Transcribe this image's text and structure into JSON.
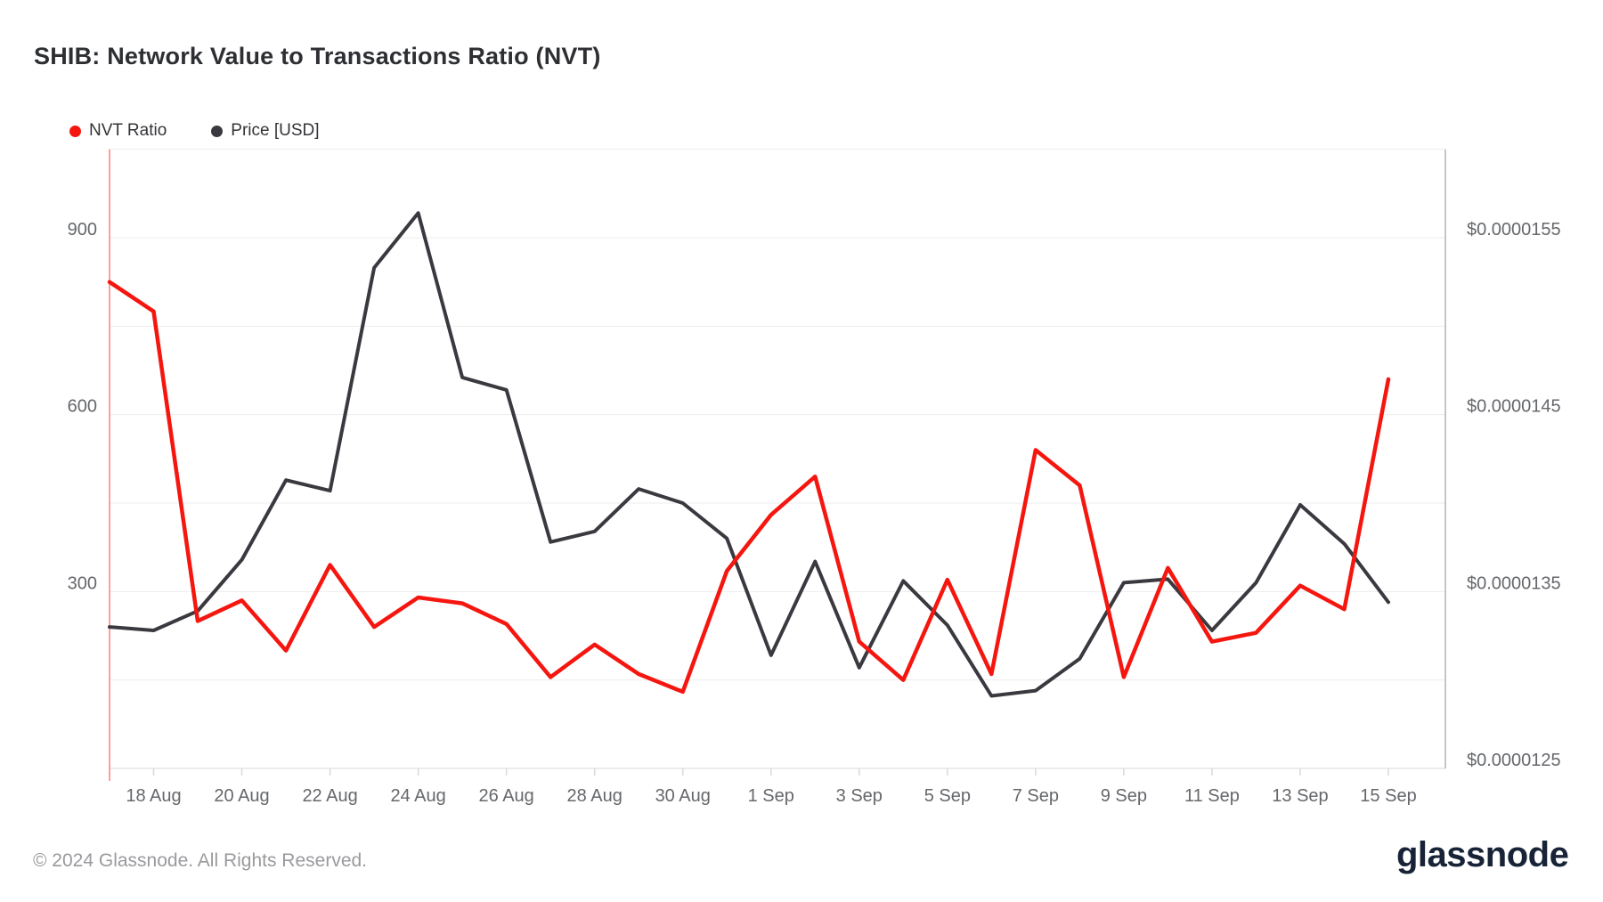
{
  "title": "SHIB: Network Value to Transactions Ratio (NVT)",
  "legend": {
    "nvt": {
      "label": "NVT Ratio",
      "color": "#f5160f"
    },
    "price": {
      "label": "Price [USD]",
      "color": "#3a393f"
    }
  },
  "footer": {
    "copyright": "© 2024 Glassnode. All Rights Reserved.",
    "brand": "glassnode"
  },
  "chart_data": {
    "type": "line",
    "x": [
      "17 Aug",
      "18 Aug",
      "19 Aug",
      "20 Aug",
      "21 Aug",
      "22 Aug",
      "23 Aug",
      "24 Aug",
      "25 Aug",
      "26 Aug",
      "27 Aug",
      "28 Aug",
      "29 Aug",
      "30 Aug",
      "31 Aug",
      "1 Sep",
      "2 Sep",
      "3 Sep",
      "4 Sep",
      "5 Sep",
      "6 Sep",
      "7 Sep",
      "8 Sep",
      "9 Sep",
      "10 Sep",
      "11 Sep",
      "12 Sep",
      "13 Sep",
      "14 Sep",
      "15 Sep"
    ],
    "x_tick_labels": [
      "18 Aug",
      "20 Aug",
      "22 Aug",
      "24 Aug",
      "26 Aug",
      "28 Aug",
      "30 Aug",
      "1 Sep",
      "3 Sep",
      "5 Sep",
      "7 Sep",
      "9 Sep",
      "11 Sep",
      "13 Sep",
      "15 Sep"
    ],
    "series": [
      {
        "name": "Price [USD]",
        "axis": "right",
        "color": "#3a393f",
        "stroke_width": 4,
        "values": [
          1.33e-05,
          1.328e-05,
          1.339e-05,
          1.368e-05,
          1.413e-05,
          1.407e-05,
          1.533e-05,
          1.564e-05,
          1.471e-05,
          1.464e-05,
          1.378e-05,
          1.384e-05,
          1.408e-05,
          1.4e-05,
          1.38e-05,
          1.314e-05,
          1.367e-05,
          1.307e-05,
          1.356e-05,
          1.331e-05,
          1.291e-05,
          1.294e-05,
          1.312e-05,
          1.355e-05,
          1.357e-05,
          1.328e-05,
          1.355e-05,
          1.399e-05,
          1.377e-05,
          1.344e-05
        ]
      },
      {
        "name": "NVT Ratio",
        "axis": "left",
        "color": "#f5160f",
        "stroke_width": 4.5,
        "values": [
          825,
          775,
          250,
          285,
          200,
          345,
          240,
          290,
          280,
          245,
          155,
          210,
          160,
          130,
          335,
          430,
          495,
          215,
          150,
          320,
          160,
          540,
          480,
          155,
          340,
          215,
          230,
          310,
          270,
          660
        ]
      }
    ],
    "y_left": {
      "tick_values": [
        300,
        600,
        900
      ],
      "tick_labels": [
        "300",
        "600",
        "900"
      ],
      "range": [
        0,
        1050
      ],
      "gridline_step": 150
    },
    "y_right": {
      "tick_values": [
        1.25e-05,
        1.35e-05,
        1.45e-05,
        1.55e-05
      ],
      "tick_labels": [
        "$0.0000125",
        "$0.0000135",
        "$0.0000145",
        "$0.0000155"
      ],
      "range": [
        1.25e-05,
        1.6e-05
      ]
    },
    "grid": true,
    "legend_position": "top-left",
    "colors": {
      "gridline": "#ededed",
      "x_axis_line": "#e6e6e6",
      "right_axis_line": "#8c8c8c",
      "left_axis_line": "#ff9f9c",
      "tick": "#d9d9d9",
      "axis_label": "#65676b"
    }
  }
}
